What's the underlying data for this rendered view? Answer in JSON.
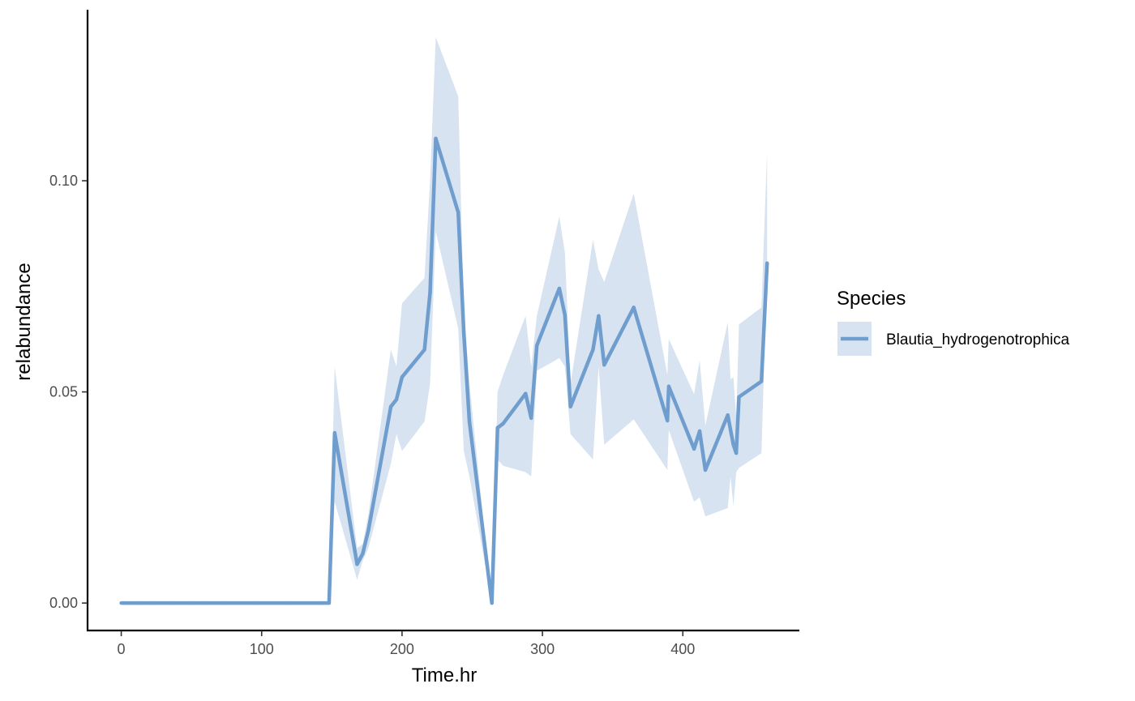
{
  "chart_data": {
    "type": "line",
    "xlabel": "Time.hr",
    "ylabel": "relabundance",
    "xlim": [
      -24,
      483
    ],
    "ylim": [
      -0.0065,
      0.1405
    ],
    "x_ticks": [
      0,
      100,
      200,
      300,
      400
    ],
    "x_tick_labels": [
      "0",
      "100",
      "200",
      "300",
      "400"
    ],
    "y_ticks": [
      0.0,
      0.05,
      0.1
    ],
    "y_tick_labels": [
      "0.00",
      "0.05",
      "0.10"
    ],
    "grid": false,
    "legend": {
      "title": "Species",
      "position": "right"
    },
    "colors": {
      "line": "#6f9dce",
      "ribbon": "#d7e3f0",
      "axis": "#000000"
    },
    "series": [
      {
        "name": "Blautia_hydrogenotrophica",
        "x": [
          0,
          12,
          24,
          36,
          48,
          60,
          72,
          96,
          120,
          144,
          148,
          152,
          168,
          172,
          176,
          192,
          196,
          200,
          216,
          220,
          224,
          240,
          244,
          248,
          264,
          268,
          272,
          288,
          292,
          296,
          312,
          316,
          320,
          336,
          340,
          344,
          365,
          389,
          390,
          408,
          412,
          416,
          432,
          434,
          436,
          438,
          440,
          456,
          460
        ],
        "y": [
          0,
          0,
          0,
          0,
          0,
          0,
          0,
          0,
          0,
          0,
          0,
          0.0403,
          0.0092,
          0.0117,
          0.0172,
          0.0465,
          0.0482,
          0.0535,
          0.06,
          0.0735,
          0.11,
          0.0925,
          0.064,
          0.043,
          0.0,
          0.0415,
          0.0425,
          0.0496,
          0.0438,
          0.061,
          0.0745,
          0.0682,
          0.0465,
          0.06,
          0.068,
          0.0564,
          0.07,
          0.0432,
          0.0513,
          0.0365,
          0.0407,
          0.0315,
          0.0445,
          0.041,
          0.0375,
          0.0355,
          0.0488,
          0.0525,
          0.0805
        ],
        "lower": [
          0,
          0,
          0,
          0,
          0,
          0,
          0,
          0,
          0,
          0,
          0,
          0.024,
          0.0055,
          0.01,
          0.013,
          0.033,
          0.04,
          0.036,
          0.043,
          0.052,
          0.088,
          0.065,
          0.036,
          0.03,
          0.0,
          0.034,
          0.0325,
          0.031,
          0.03,
          0.055,
          0.058,
          0.056,
          0.04,
          0.034,
          0.056,
          0.0375,
          0.0435,
          0.0315,
          0.041,
          0.024,
          0.025,
          0.0205,
          0.0225,
          0.03,
          0.023,
          0.031,
          0.032,
          0.0355,
          0.08
        ],
        "upper": [
          0,
          0,
          0,
          0,
          0,
          0,
          0,
          0,
          0,
          0,
          0,
          0.056,
          0.013,
          0.014,
          0.021,
          0.06,
          0.056,
          0.071,
          0.077,
          0.1,
          0.134,
          0.12,
          0.07,
          0.052,
          0.0,
          0.05,
          0.054,
          0.068,
          0.056,
          0.068,
          0.0915,
          0.083,
          0.052,
          0.086,
          0.079,
          0.076,
          0.097,
          0.054,
          0.0625,
          0.0495,
          0.0575,
          0.042,
          0.0665,
          0.053,
          0.0535,
          0.044,
          0.066,
          0.07,
          0.107
        ]
      }
    ]
  }
}
